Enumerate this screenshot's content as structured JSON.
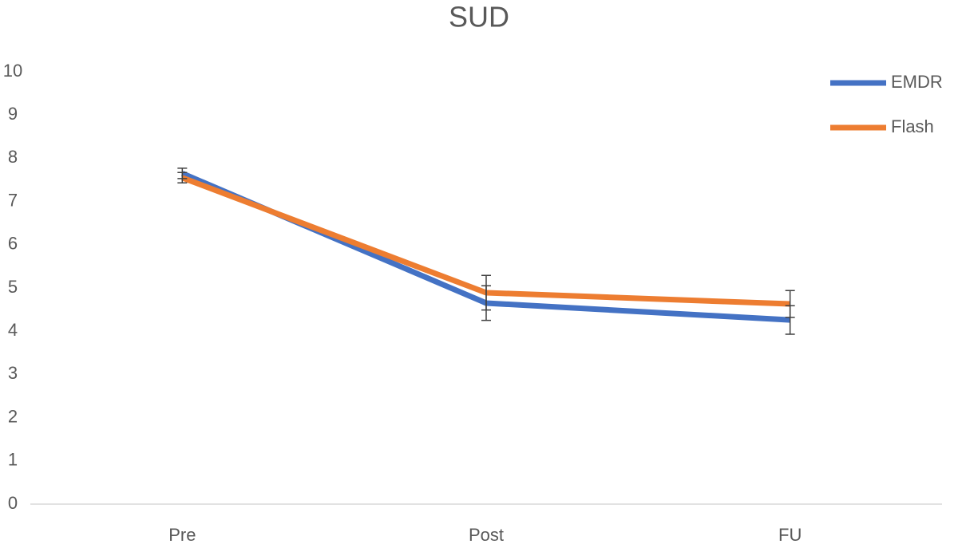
{
  "chart_data": {
    "type": "line",
    "title": "SUD",
    "categories": [
      "Pre",
      "Post",
      "FU"
    ],
    "series": [
      {
        "name": "EMDR",
        "color": "#4472c4",
        "values": [
          7.65,
          4.65,
          4.26
        ],
        "errors": [
          0.12,
          0.4,
          0.33
        ]
      },
      {
        "name": "Flash",
        "color": "#ed7d31",
        "values": [
          7.55,
          4.89,
          4.63
        ],
        "errors": [
          0.12,
          0.4,
          0.31
        ]
      }
    ],
    "ylim": [
      0,
      10
    ],
    "yticks": [
      0,
      1,
      2,
      3,
      4,
      5,
      6,
      7,
      8,
      9,
      10
    ],
    "grid": false,
    "legend": "top-right"
  }
}
